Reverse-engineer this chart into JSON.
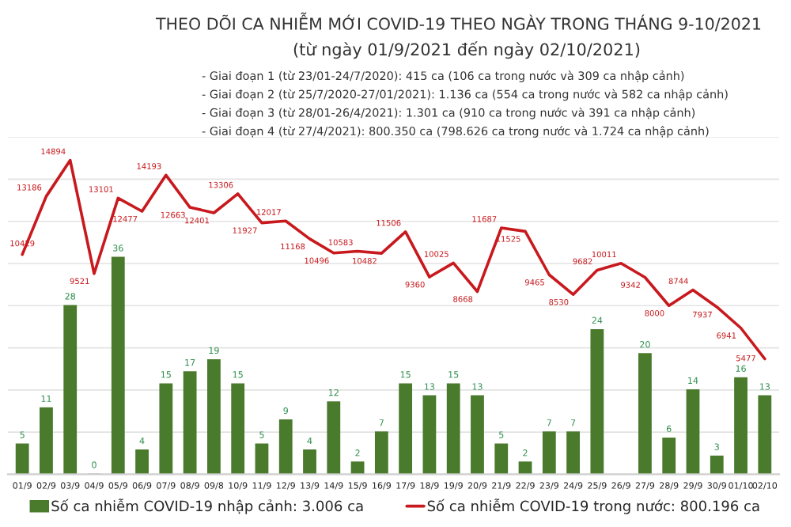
{
  "chart_data": {
    "type": "bar",
    "title": "THEO DÕI CA NHIỄM MỚI COVID-19 THEO NGÀY TRONG THÁNG 9-10/2021",
    "subtitle": "(từ ngày 01/9/2021 đến ngày 02/10/2021)",
    "annotations": [
      "- Giai đoạn 1 (từ 23/01-24/7/2020): 415 ca (106 ca trong nước và 309 ca nhập cảnh)",
      "- Giai đoạn 2 (từ 25/7/2020-27/01/2021): 1.136 ca (554 ca trong nước và 582 ca nhập cảnh)",
      "- Giai đoạn 3 (từ 28/01-26/4/2021): 1.301 ca (910 ca trong nước và 391 ca nhập cảnh)",
      "- Giai đoạn 4 (từ 27/4/2021): 800.350 ca (798.626 ca trong nước và 1.724 ca nhập cảnh)"
    ],
    "categories": [
      "01/9",
      "02/9",
      "03/9",
      "04/9",
      "05/9",
      "06/9",
      "07/9",
      "08/9",
      "09/8",
      "10/9",
      "11/9",
      "12/9",
      "13/9",
      "14/9",
      "15/9",
      "16/9",
      "17/9",
      "18/9",
      "19/9",
      "20/9",
      "21/9",
      "22/9",
      "23/9",
      "24/9",
      "25/9",
      "26/9",
      "27/9",
      "28/9",
      "29/9",
      "30/9",
      "01/10",
      "02/10"
    ],
    "series": [
      {
        "name": "Số ca nhiễm COVID-19 nhập cảnh: 3.006 ca",
        "color": "#4a7a2c",
        "values": [
          5,
          11,
          28,
          0,
          36,
          4,
          15,
          17,
          19,
          15,
          5,
          9,
          4,
          12,
          2,
          7,
          15,
          13,
          15,
          13,
          5,
          2,
          7,
          7,
          24,
          null,
          20,
          6,
          14,
          3,
          16,
          13
        ]
      },
      {
        "type": "line",
        "axis": "y2",
        "name": "Số ca nhiễm COVID-19 trong nước: 800.196 ca",
        "color": "#c8191e",
        "values": [
          10429,
          13186,
          14894,
          9521,
          13101,
          12477,
          14193,
          12663,
          12401,
          13306,
          11927,
          12017,
          11168,
          10496,
          10583,
          10482,
          11506,
          9360,
          10025,
          8668,
          11687,
          11525,
          9465,
          8530,
          9682,
          10011,
          9342,
          8000,
          8744,
          7937,
          6941,
          5477
        ]
      }
    ],
    "ylim": [
      0,
      56
    ],
    "y2lim": [
      0,
      16000
    ],
    "y2ticks": [
      {
        "value": 0,
        "label": null
      },
      {
        "value": 2000,
        "label": null
      },
      {
        "value": 4000,
        "label": null
      },
      {
        "value": 6000,
        "label": null
      },
      {
        "value": 8000,
        "label": null
      },
      {
        "value": 10000,
        "label": null
      },
      {
        "value": 12000,
        "label": null
      },
      {
        "value": 14000,
        "label": null
      },
      {
        "value": 16000,
        "label": null
      }
    ],
    "tick_labels": "x",
    "grid": "y2",
    "data_labels": true,
    "legend": "bottom",
    "line_style": "solid",
    "marker": "none"
  }
}
